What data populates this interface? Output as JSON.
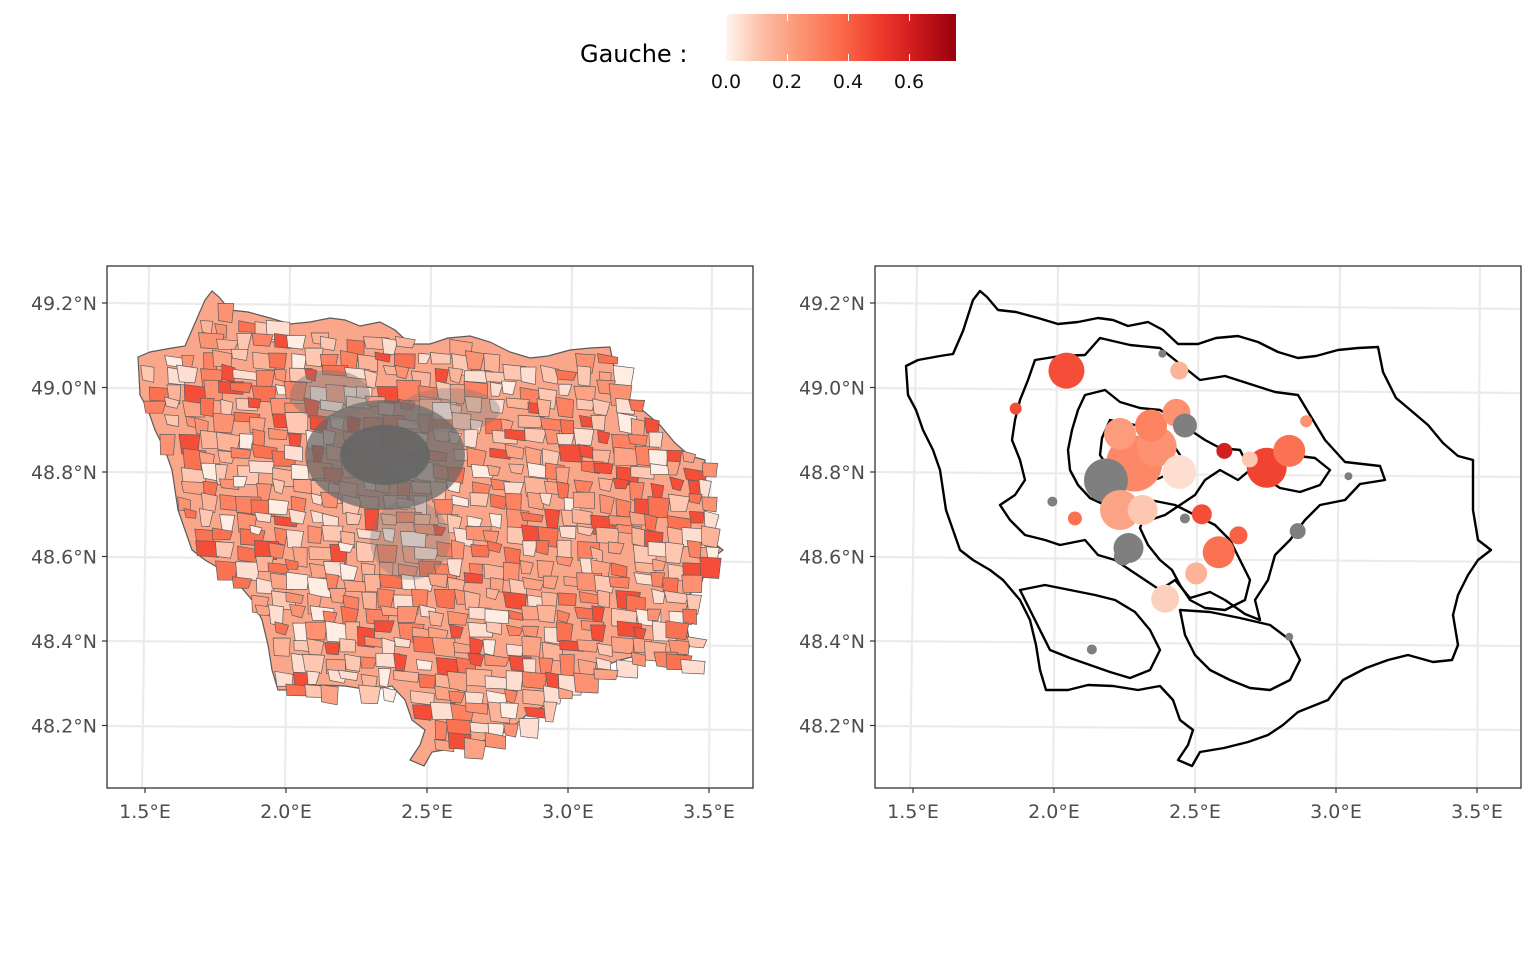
{
  "legend": {
    "title": "Gauche :",
    "ticks": [
      "0.0",
      "0.2",
      "0.4",
      "0.6"
    ],
    "tick_values": [
      0.0,
      0.2,
      0.4,
      0.6
    ],
    "range": [
      0.0,
      0.75
    ],
    "colors": [
      "#fff5f0",
      "#fcbba1",
      "#fc9272",
      "#fb6a4a",
      "#ef3b2c",
      "#cb181d",
      "#99000d"
    ],
    "na_color": "#7f7f7f"
  },
  "axes": {
    "x_ticks": [
      "1.5°E",
      "2.0°E",
      "2.5°E",
      "3.0°E",
      "3.5°E"
    ],
    "x_values": [
      1.5,
      2.0,
      2.5,
      3.0,
      3.5
    ],
    "y_ticks": [
      "49.2°N",
      "49.0°N",
      "48.8°N",
      "48.6°N",
      "48.4°N",
      "48.2°N"
    ],
    "y_values": [
      49.2,
      49.0,
      48.8,
      48.6,
      48.4,
      48.2
    ],
    "xlim": [
      1.37,
      3.6
    ],
    "ylim": [
      48.05,
      49.28
    ]
  },
  "left_map": {
    "type": "choropleth",
    "fill": "Gauche :",
    "region": "Île-de-France"
  },
  "right_map": {
    "type": "proportional-symbols",
    "points": [
      {
        "lon": 2.03,
        "lat": 49.04,
        "share": 0.45,
        "size": 18
      },
      {
        "lon": 1.85,
        "lat": 48.95,
        "share": 0.45,
        "size": 6
      },
      {
        "lon": 2.43,
        "lat": 49.04,
        "share": 0.15,
        "size": 9
      },
      {
        "lon": 2.37,
        "lat": 49.08,
        "share": null,
        "size": 4
      },
      {
        "lon": 2.42,
        "lat": 48.94,
        "share": 0.25,
        "size": 14
      },
      {
        "lon": 2.45,
        "lat": 48.91,
        "share": null,
        "size": 12
      },
      {
        "lon": 2.33,
        "lat": 48.91,
        "share": 0.3,
        "size": 16
      },
      {
        "lon": 2.22,
        "lat": 48.89,
        "share": 0.22,
        "size": 16
      },
      {
        "lon": 2.35,
        "lat": 48.86,
        "share": 0.25,
        "size": 20
      },
      {
        "lon": 2.27,
        "lat": 48.82,
        "share": 0.28,
        "size": 28
      },
      {
        "lon": 2.17,
        "lat": 48.78,
        "share": null,
        "size": 22
      },
      {
        "lon": 2.43,
        "lat": 48.8,
        "share": 0.05,
        "size": 17
      },
      {
        "lon": 2.22,
        "lat": 48.71,
        "share": 0.2,
        "size": 20
      },
      {
        "lon": 2.3,
        "lat": 48.71,
        "share": 0.1,
        "size": 15
      },
      {
        "lon": 2.25,
        "lat": 48.62,
        "share": null,
        "size": 15
      },
      {
        "lon": 2.23,
        "lat": 48.6,
        "share": null,
        "size": 9
      },
      {
        "lon": 2.38,
        "lat": 48.5,
        "share": 0.08,
        "size": 14
      },
      {
        "lon": 2.49,
        "lat": 48.56,
        "share": 0.15,
        "size": 11
      },
      {
        "lon": 2.57,
        "lat": 48.61,
        "share": 0.35,
        "size": 16
      },
      {
        "lon": 2.64,
        "lat": 48.65,
        "share": 0.4,
        "size": 9
      },
      {
        "lon": 2.51,
        "lat": 48.7,
        "share": 0.45,
        "size": 10
      },
      {
        "lon": 2.45,
        "lat": 48.69,
        "share": null,
        "size": 5
      },
      {
        "lon": 2.59,
        "lat": 48.85,
        "share": 0.6,
        "size": 8
      },
      {
        "lon": 2.74,
        "lat": 48.81,
        "share": 0.48,
        "size": 20
      },
      {
        "lon": 2.82,
        "lat": 48.85,
        "share": 0.35,
        "size": 16
      },
      {
        "lon": 2.68,
        "lat": 48.83,
        "share": 0.1,
        "size": 8
      },
      {
        "lon": 2.88,
        "lat": 48.92,
        "share": 0.25,
        "size": 6
      },
      {
        "lon": 3.03,
        "lat": 48.79,
        "share": null,
        "size": 4
      },
      {
        "lon": 2.85,
        "lat": 48.66,
        "share": null,
        "size": 8
      },
      {
        "lon": 1.98,
        "lat": 48.73,
        "share": null,
        "size": 5
      },
      {
        "lon": 2.06,
        "lat": 48.69,
        "share": 0.35,
        "size": 7
      },
      {
        "lon": 2.82,
        "lat": 48.41,
        "share": null,
        "size": 4
      },
      {
        "lon": 2.12,
        "lat": 48.38,
        "share": null,
        "size": 5
      }
    ]
  }
}
